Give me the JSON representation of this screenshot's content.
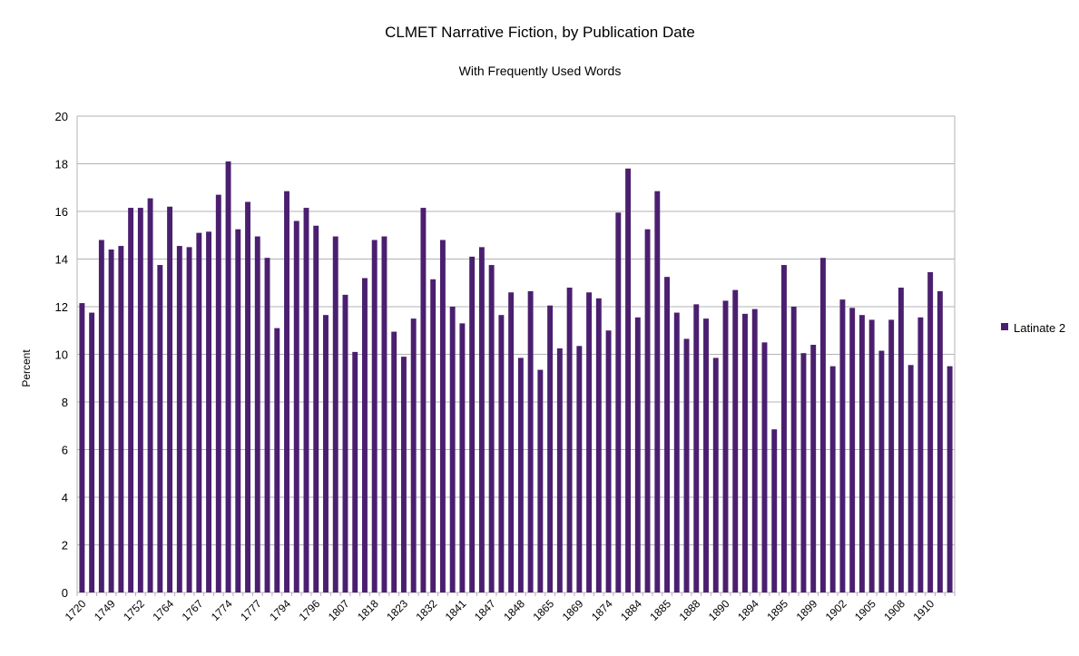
{
  "chart_data": {
    "type": "bar",
    "title": "CLMET Narrative Fiction, by Publication Date",
    "subtitle": "With Frequently Used Words",
    "xlabel": "",
    "ylabel": "Percent",
    "ylim": [
      0,
      20
    ],
    "yticks": [
      0,
      2,
      4,
      6,
      8,
      10,
      12,
      14,
      16,
      18,
      20
    ],
    "grid": true,
    "legend_position": "right",
    "series_color": "#4b1f6f",
    "x_tick_labels": [
      "1720",
      "1749",
      "1752",
      "1764",
      "1767",
      "1774",
      "1777",
      "1794",
      "1796",
      "1807",
      "1818",
      "1823",
      "1832",
      "1841",
      "1847",
      "1848",
      "1865",
      "1869",
      "1874",
      "1884",
      "1885",
      "1888",
      "1890",
      "1894",
      "1895",
      "1899",
      "1902",
      "1905",
      "1908",
      "1910"
    ],
    "series": [
      {
        "name": "Latinate 2",
        "values": [
          12.15,
          11.75,
          14.8,
          14.4,
          14.55,
          16.15,
          16.15,
          16.55,
          13.75,
          16.2,
          14.55,
          14.5,
          15.1,
          15.15,
          16.7,
          18.1,
          15.25,
          16.4,
          14.95,
          14.05,
          11.1,
          16.85,
          15.6,
          16.15,
          15.4,
          11.65,
          14.95,
          12.5,
          10.1,
          13.2,
          14.8,
          14.95,
          10.95,
          9.9,
          11.5,
          16.15,
          13.15,
          14.8,
          12.0,
          11.3,
          14.1,
          14.5,
          13.75,
          11.65,
          12.6,
          9.85,
          12.65,
          9.35,
          12.05,
          10.25,
          12.8,
          10.35,
          12.6,
          12.35,
          11.0,
          15.95,
          17.8,
          11.55,
          15.25,
          16.85,
          13.25,
          11.75,
          10.65,
          12.1,
          11.5,
          9.85,
          12.25,
          12.7,
          11.7,
          11.9,
          10.5,
          6.85,
          13.75,
          12.0,
          10.05,
          10.4,
          14.05,
          9.5,
          12.3,
          11.95,
          11.65,
          11.45,
          10.15,
          11.45,
          12.8,
          9.55,
          11.55,
          13.45,
          12.65,
          9.5
        ]
      }
    ]
  }
}
